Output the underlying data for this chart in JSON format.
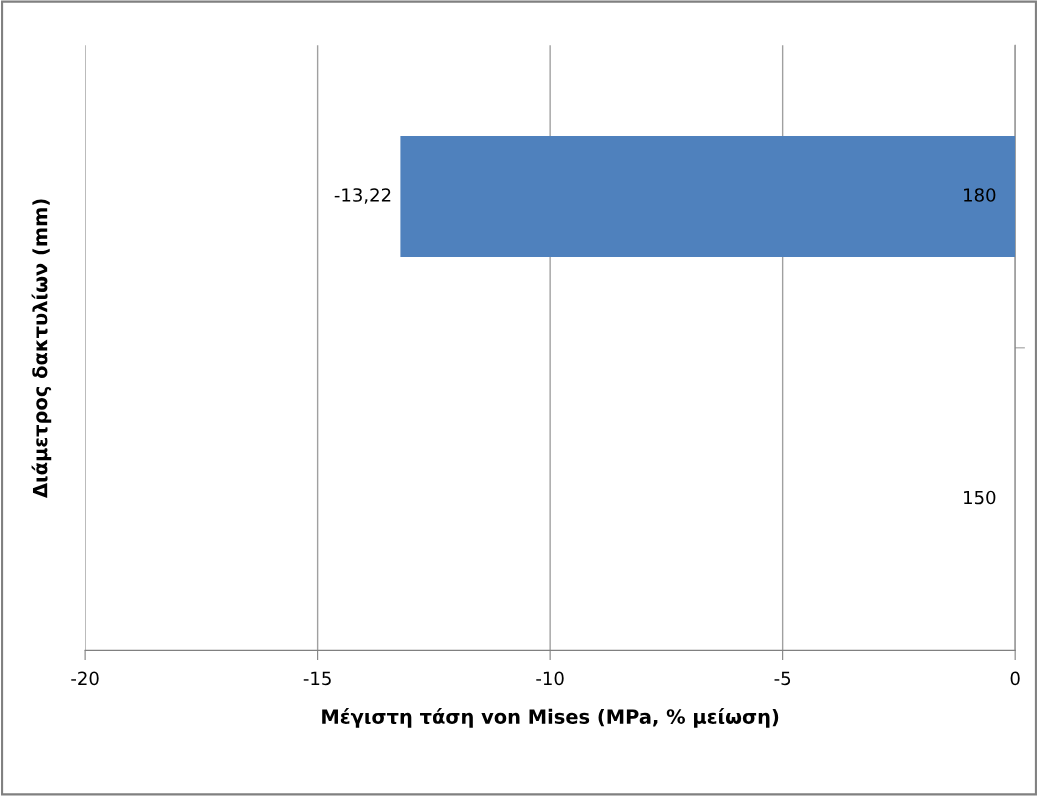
{
  "chart_data": {
    "type": "bar",
    "orientation": "horizontal",
    "xlabel": "Μέγιστη τάση von Mises (MPa, % μείωση)",
    "ylabel": "Διάμετρος δακτυλίων (mm)",
    "categories": [
      "180",
      "150"
    ],
    "values": [
      -13.22,
      null
    ],
    "value_labels": [
      "-13,22",
      null
    ],
    "color": "#4f81bd",
    "xlim": [
      -20,
      0
    ],
    "xticks": [
      -20,
      -15,
      -10,
      -5,
      0
    ],
    "grid": "x",
    "legend": false
  }
}
